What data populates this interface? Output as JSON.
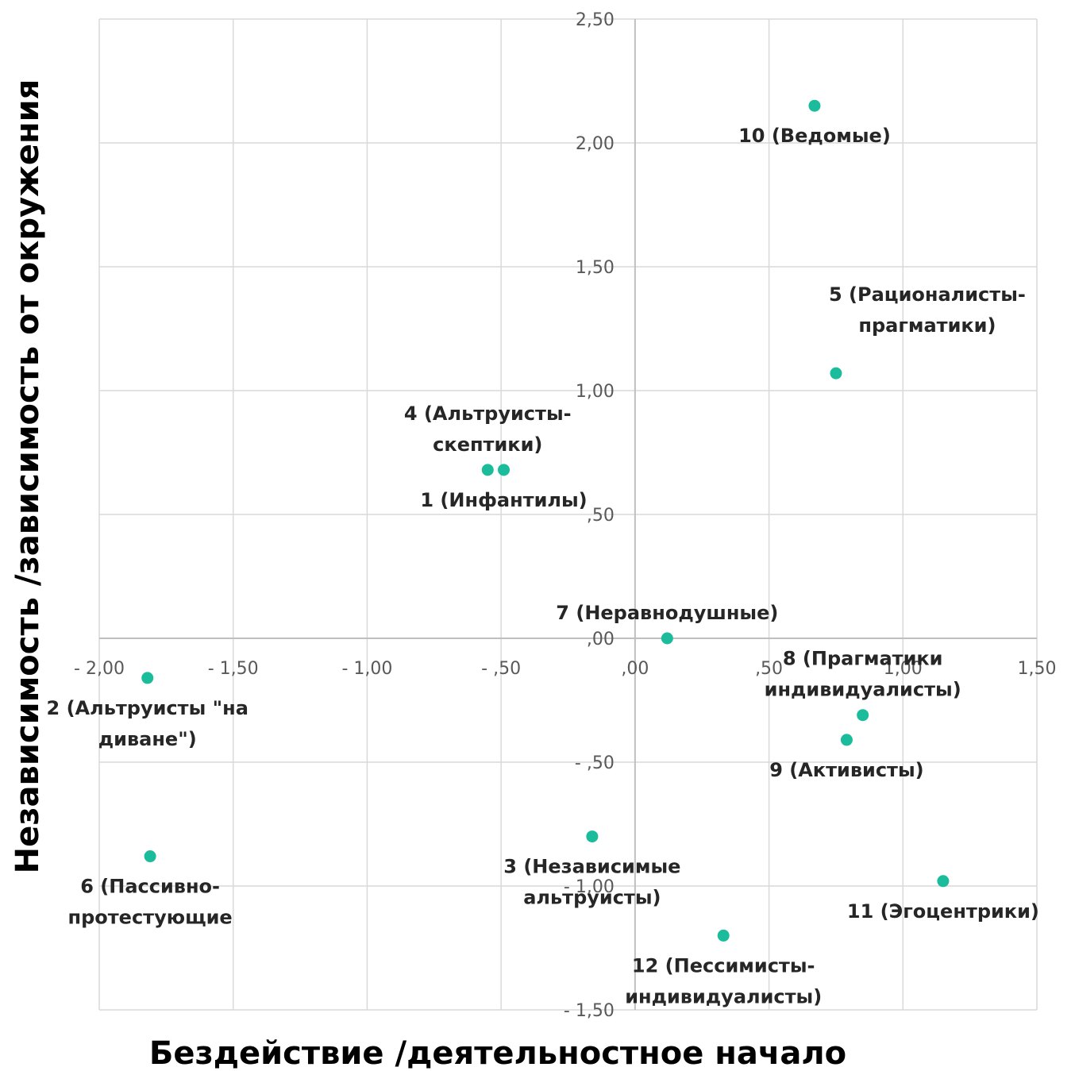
{
  "chart_data": {
    "type": "scatter",
    "xlabel": "Бездействие /деятельностное начало",
    "ylabel": "Независимость /зависимость от окружения",
    "xlim": [
      -2.0,
      1.5
    ],
    "ylim": [
      -1.5,
      2.5
    ],
    "x_ticks": [
      {
        "value": -2.0,
        "label": "- 2,00"
      },
      {
        "value": -1.5,
        "label": "- 1,50"
      },
      {
        "value": -1.0,
        "label": "- 1,00"
      },
      {
        "value": -0.5,
        "label": "- ,50"
      },
      {
        "value": 0.0,
        "label": ",00"
      },
      {
        "value": 0.5,
        "label": ",50"
      },
      {
        "value": 1.0,
        "label": "1,00"
      },
      {
        "value": 1.5,
        "label": "1,50"
      }
    ],
    "y_ticks": [
      {
        "value": 2.5,
        "label": "2,50"
      },
      {
        "value": 2.0,
        "label": "2,00"
      },
      {
        "value": 1.5,
        "label": "1,50"
      },
      {
        "value": 1.0,
        "label": "1,00"
      },
      {
        "value": 0.5,
        "label": ",50"
      },
      {
        "value": 0.0,
        "label": ",00"
      },
      {
        "value": -0.5,
        "label": "- ,50"
      },
      {
        "value": -1.0,
        "label": "- 1,00"
      },
      {
        "value": -1.5,
        "label": "- 1,50"
      }
    ],
    "grid": true,
    "marker_color": "#1ABC9C",
    "points": [
      {
        "x": -0.49,
        "y": 0.68,
        "lines": [
          "1 (Инфантилы)"
        ],
        "pos": "below"
      },
      {
        "x": -1.82,
        "y": -0.16,
        "lines": [
          "2 (Альтруисты \"на",
          "диване\")"
        ],
        "pos": "below"
      },
      {
        "x": -0.16,
        "y": -0.8,
        "lines": [
          "3 (Независимые",
          "альтруисты)"
        ],
        "pos": "below"
      },
      {
        "x": -0.55,
        "y": 0.68,
        "lines": [
          "4 (Альтруисты-",
          "скептики)"
        ],
        "pos": "above"
      },
      {
        "x": 0.75,
        "y": 1.07,
        "lines": [
          "5 (Рационалисты-",
          "прагматики)"
        ],
        "pos": "above-right"
      },
      {
        "x": -1.81,
        "y": -0.88,
        "lines": [
          "6 (Пассивно-",
          "протестующие"
        ],
        "pos": "below"
      },
      {
        "x": 0.12,
        "y": 0.0,
        "lines": [
          "7 (Неравнодушные)"
        ],
        "pos": "above"
      },
      {
        "x": 0.85,
        "y": -0.31,
        "lines": [
          "8 (Прагматики",
          "индивидуалисты)"
        ],
        "pos": "above"
      },
      {
        "x": 0.79,
        "y": -0.41,
        "lines": [
          "9 (Активисты)"
        ],
        "pos": "below"
      },
      {
        "x": 0.67,
        "y": 2.15,
        "lines": [
          "10 (Ведомые)"
        ],
        "pos": "below"
      },
      {
        "x": 1.15,
        "y": -0.98,
        "lines": [
          "11 (Эгоцентрики)"
        ],
        "pos": "below"
      },
      {
        "x": 0.33,
        "y": -1.2,
        "lines": [
          "12 (Пессимисты-",
          "индивидуалисты)"
        ],
        "pos": "below"
      }
    ]
  }
}
